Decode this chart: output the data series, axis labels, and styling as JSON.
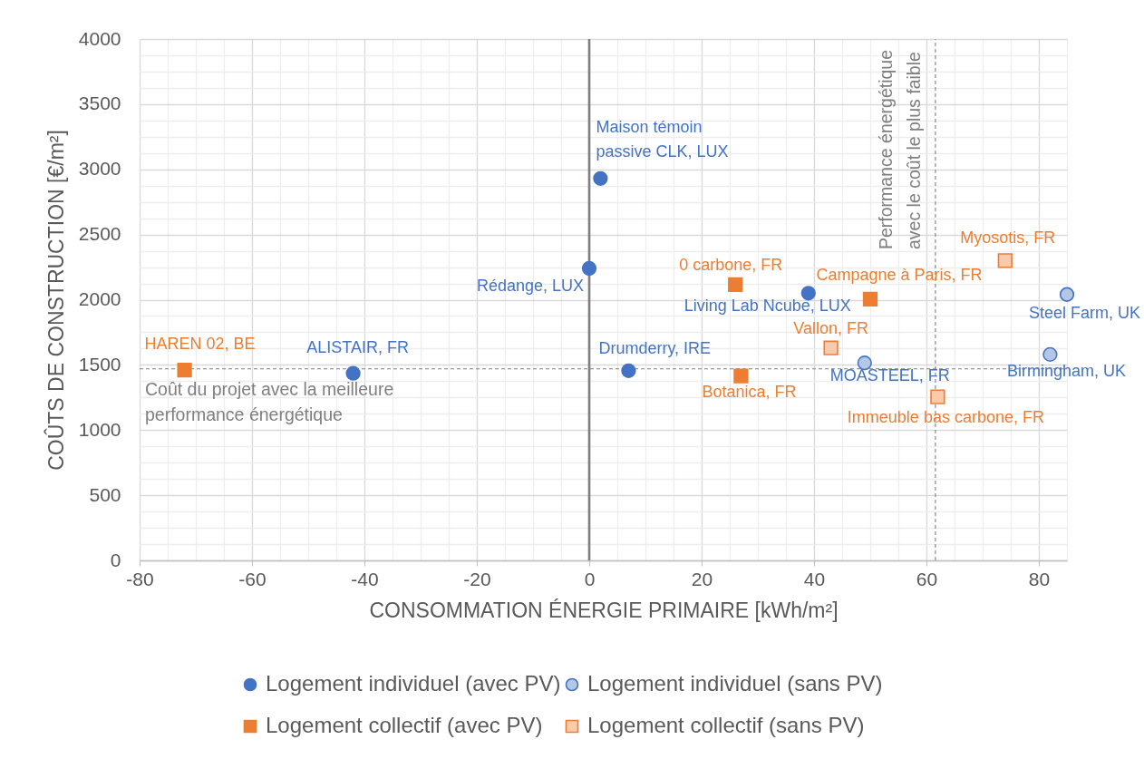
{
  "chart_data": {
    "type": "scatter",
    "xlabel": "CONSOMMATION ÉNERGIE PRIMAIRE [kWh/m²]",
    "ylabel": "COÛTS DE CONSTRUCTION [€/m²]",
    "xlim": [
      -80,
      85
    ],
    "xticks": [
      -80,
      -60,
      -40,
      -20,
      0,
      20,
      40,
      60,
      80
    ],
    "ylim": [
      0,
      4000
    ],
    "yticks": [
      0,
      500,
      1000,
      1500,
      2000,
      2500,
      3000,
      3500,
      4000
    ],
    "grid": true,
    "legend": "bottom",
    "series": [
      {
        "name": "Logement individuel (avec PV)",
        "color": "#4472c4",
        "marker": "circle",
        "x": [
          2,
          0,
          39,
          7,
          -42
        ],
        "values": [
          2930,
          2240,
          2050,
          1455,
          1435
        ]
      },
      {
        "name": "Logement individuel (sans PV)",
        "color": "#b4c7e7",
        "marker": "circle",
        "x": [
          85,
          82,
          49
        ],
        "values": [
          2040,
          1580,
          1515
        ]
      },
      {
        "name": "Logement collectif (avec PV)",
        "color": "#ed7d31",
        "marker": "square",
        "x": [
          -72,
          26,
          50,
          27
        ],
        "values": [
          1460,
          2115,
          2005,
          1415
        ]
      },
      {
        "name": "Logement collectif (sans PV)",
        "color": "#f8cbad",
        "marker": "square",
        "x": [
          74,
          43,
          62
        ],
        "values": [
          2300,
          1630,
          1255
        ]
      }
    ],
    "ref_lines": [
      {
        "axis": "x",
        "value": 0,
        "color": "#7f7f7f",
        "line_style": "solid"
      },
      {
        "axis": "y",
        "value": 1470,
        "label": "Coût du projet avec la meilleure performance énergétique",
        "color": "#7f7f7f",
        "line_style": "dashed"
      },
      {
        "axis": "x",
        "value": 61.6,
        "label": "Performance énergétique avec le coût le plus faible",
        "color": "#7f7f7f",
        "line_style": "dashed"
      }
    ],
    "annotations": [
      {
        "text": "Maison témoin passive CLK, LUX",
        "x": 2,
        "y": 2930
      },
      {
        "text": "Rédange, LUX",
        "x": 0,
        "y": 2240
      },
      {
        "text": "Living Lab Ncube, LUX",
        "x": 39,
        "y": 2050
      },
      {
        "text": "Drumderry, IRE",
        "x": 7,
        "y": 1455
      },
      {
        "text": "ALISTAIR, FR",
        "x": -42,
        "y": 1435
      },
      {
        "text": "Steel Farm, UK",
        "x": 85,
        "y": 2040
      },
      {
        "text": "Birmingham, UK",
        "x": 82,
        "y": 1580
      },
      {
        "text": "MOASTEEL, FR",
        "x": 49,
        "y": 1515
      },
      {
        "text": "HAREN 02, BE",
        "x": -72,
        "y": 1460
      },
      {
        "text": "0 carbone, FR",
        "x": 26,
        "y": 2115
      },
      {
        "text": "Campagne à Paris, FR",
        "x": 50,
        "y": 2005
      },
      {
        "text": "Botanica, FR",
        "x": 27,
        "y": 1415
      },
      {
        "text": "Myosotis, FR",
        "x": 74,
        "y": 2300
      },
      {
        "text": "Vallon, FR",
        "x": 43,
        "y": 1630
      },
      {
        "text": "Immeuble bas carbone, FR",
        "x": 62,
        "y": 1255
      }
    ]
  }
}
